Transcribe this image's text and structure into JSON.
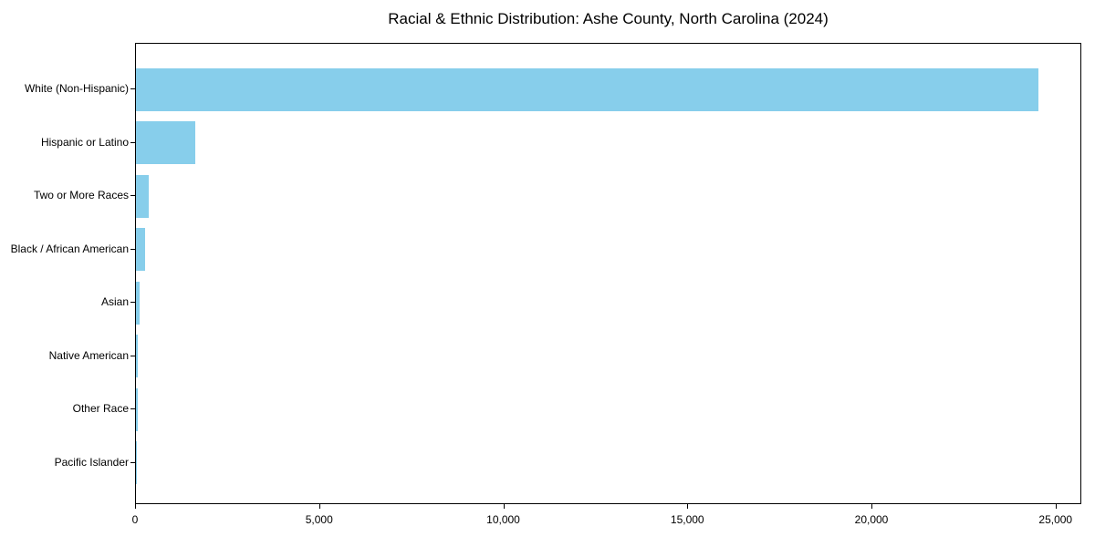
{
  "figure": {
    "background": "#ffffff",
    "text_color": "#000000"
  },
  "chart_data": {
    "type": "bar",
    "orientation": "horizontal",
    "title": "Racial & Ethnic Distribution: Ashe County, North Carolina (2024)",
    "categories": [
      "White (Non-Hispanic)",
      "Hispanic or Latino",
      "Two or More Races",
      "Black / African American",
      "Asian",
      "Native American",
      "Other Race",
      "Pacific Islander"
    ],
    "values": [
      24500,
      1610,
      340,
      250,
      100,
      55,
      55,
      10
    ],
    "bar_color": "#87CEEB",
    "xlabel": "",
    "ylabel": "",
    "xlim": [
      0,
      25700
    ],
    "x_ticks": [
      0,
      5000,
      10000,
      15000,
      20000,
      25000
    ],
    "x_tick_labels": [
      "0",
      "5,000",
      "10,000",
      "15,000",
      "20,000",
      "25,000"
    ],
    "grid": false,
    "legend": "none",
    "frame": true
  }
}
